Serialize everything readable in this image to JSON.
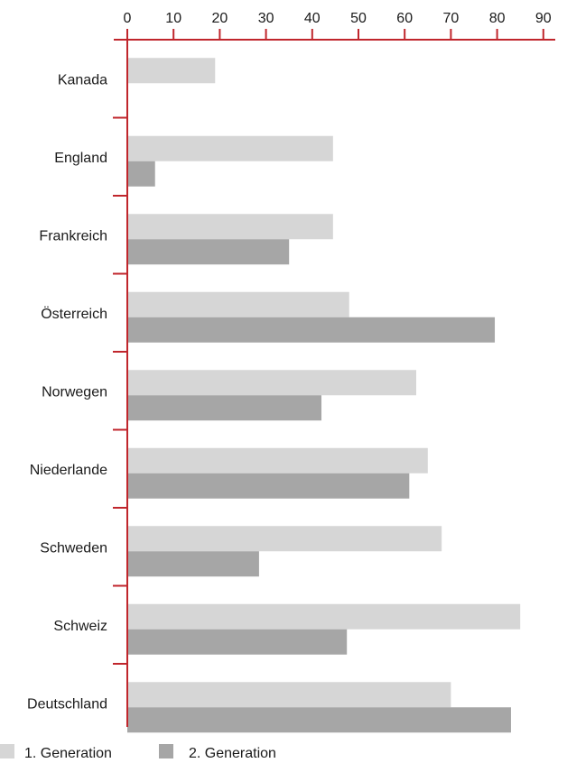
{
  "chart_data": {
    "type": "bar",
    "orientation": "horizontal",
    "categories": [
      "Kanada",
      "England",
      "Frankreich",
      "Österreich",
      "Norwegen",
      "Niederlande",
      "Schweden",
      "Schweiz",
      "Deutschland"
    ],
    "series": [
      {
        "name": "1. Generation",
        "values": [
          19,
          44.5,
          44.5,
          48,
          62.5,
          65,
          68,
          85,
          70
        ],
        "color": "#d6d6d6"
      },
      {
        "name": "2. Generation",
        "values": [
          null,
          6,
          35,
          79.5,
          42,
          61,
          28.5,
          47.5,
          83
        ],
        "color": "#a6a6a6"
      }
    ],
    "xaxis": {
      "ticks": [
        0,
        10,
        20,
        30,
        40,
        50,
        60,
        70,
        80,
        90
      ],
      "tick_labels": [
        "0",
        "10",
        "20",
        "30",
        "40",
        "50",
        "60",
        "70",
        "80",
        "90"
      ],
      "range": [
        0,
        90
      ],
      "position": "top"
    },
    "title": "",
    "xlabel": "",
    "ylabel": "",
    "grid": false,
    "legend": {
      "position": "bottom-left"
    },
    "axis_color": "#c0262c"
  }
}
